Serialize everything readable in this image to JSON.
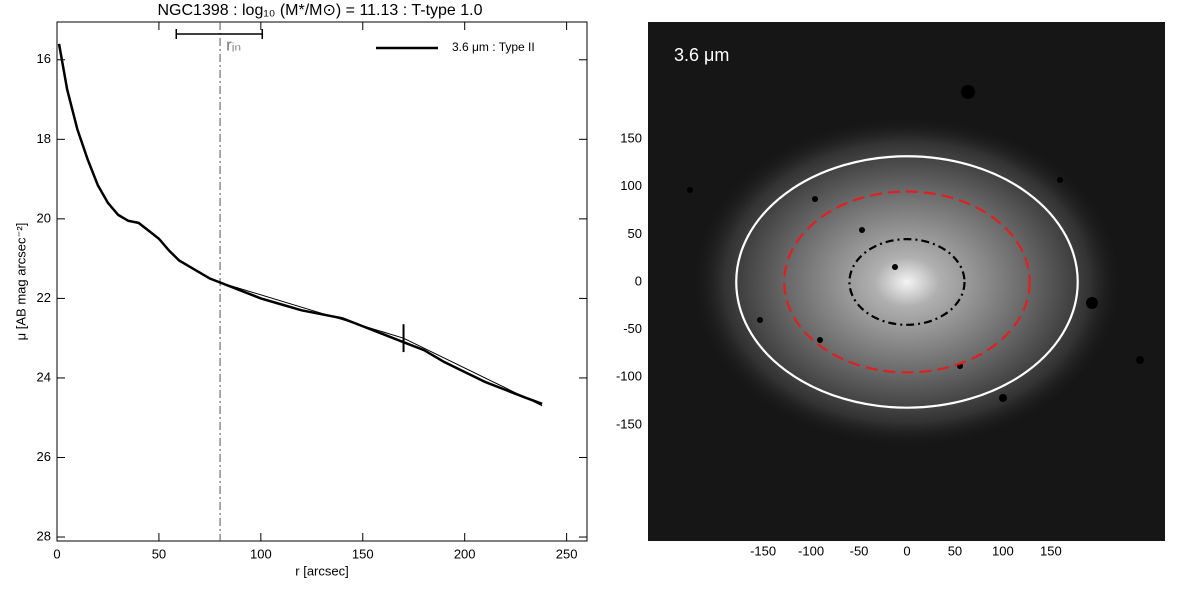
{
  "chart_data": [
    {
      "type": "line",
      "title": "NGC1398 : log₁₀ (M*/M⊙) = 11.13 : T-type 1.0",
      "x_label": "r [arcsec]",
      "y_label": "μ [AB mag arcsec⁻²]",
      "x": [
        1,
        5,
        10,
        15,
        20,
        25,
        30,
        35,
        40,
        45,
        50,
        55,
        60,
        65,
        70,
        75,
        80,
        90,
        100,
        110,
        120,
        130,
        140,
        150,
        160,
        170,
        180,
        190,
        200,
        210,
        220,
        230,
        238
      ],
      "series": [
        {
          "name": "3.6 μm : Type II",
          "color": "#000000",
          "values": [
            15.6,
            16.75,
            17.75,
            18.5,
            19.15,
            19.6,
            19.9,
            20.05,
            20.1,
            20.3,
            20.5,
            20.8,
            21.05,
            21.2,
            21.35,
            21.5,
            21.6,
            21.8,
            22.0,
            22.15,
            22.3,
            22.4,
            22.5,
            22.7,
            22.9,
            23.1,
            23.3,
            23.6,
            23.85,
            24.1,
            24.3,
            24.5,
            24.65
          ]
        }
      ],
      "fits": [
        {
          "x": [
            80,
            170
          ],
          "values": [
            21.6,
            23.0
          ]
        },
        {
          "x": [
            170,
            238
          ],
          "values": [
            23.0,
            24.7
          ]
        }
      ],
      "break": {
        "x": 170,
        "y": 23.0,
        "halfheight": 0.35
      },
      "r_in": 80,
      "r_in_label": "rᵢₙ",
      "r_in_range": [
        58.5,
        100.7
      ],
      "xlim": [
        0,
        260
      ],
      "xticks": [
        0,
        50,
        100,
        150,
        200,
        250
      ],
      "ylim": [
        15.05,
        28.1
      ],
      "yticks": [
        16,
        18,
        20,
        22,
        24,
        26,
        28
      ],
      "y_inverted": true,
      "legend": "upper right"
    },
    {
      "type": "image",
      "label": "3.6 μm",
      "xlim": [
        -270,
        269
      ],
      "ylim": [
        -272,
        273
      ],
      "xticks": [
        -150,
        -100,
        -50,
        0,
        50,
        100,
        150
      ],
      "yticks": [
        150,
        100,
        50,
        0,
        -50,
        -100,
        -150
      ],
      "ellipses": [
        {
          "rx": 178,
          "ry": 132,
          "color": "#ffffff",
          "dash": "solid"
        },
        {
          "rx": 128,
          "ry": 95,
          "color": "#e02020",
          "dash": "dashed"
        },
        {
          "rx": 60,
          "ry": 45,
          "color": "#000000",
          "dash": "dashdot"
        }
      ]
    }
  ]
}
